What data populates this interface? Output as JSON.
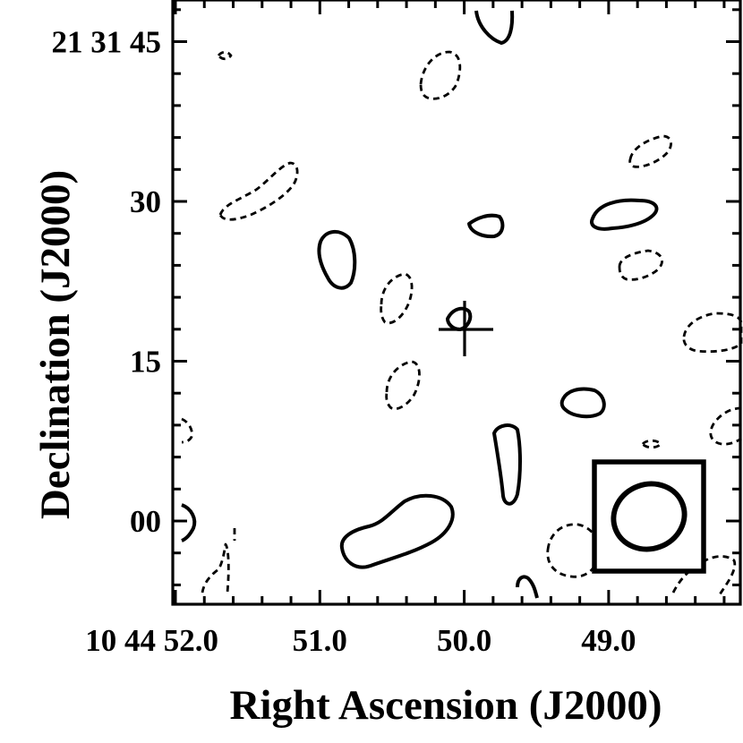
{
  "chart_data": {
    "type": "contour",
    "xlabel": "Right Ascension (J2000)",
    "ylabel": "Declination (J2000)",
    "x_ticks": [
      {
        "value": 52.0,
        "label": "10 44 52.0"
      },
      {
        "value": 51.0,
        "label": "51.0"
      },
      {
        "value": 50.0,
        "label": "50.0"
      },
      {
        "value": 49.0,
        "label": "49.0"
      }
    ],
    "y_ticks": [
      {
        "value": 45,
        "label": "21 31 45"
      },
      {
        "value": 30,
        "label": "30"
      },
      {
        "value": 15,
        "label": "15"
      },
      {
        "value": 0,
        "label": "00"
      }
    ],
    "xlim": [
      52.0,
      48.2
    ],
    "ylim": [
      -7.5,
      48
    ],
    "x_unit": "seconds of RA after 10h44m",
    "y_unit": "arcsec after +21d31m",
    "grid": false,
    "contours": {
      "positive_style": "solid",
      "negative_style": "dashed",
      "positive": [
        {
          "id": "pos-top-edge",
          "ra": 49.8,
          "dec": 47.5
        },
        {
          "id": "pos-upper-right",
          "ra": 49.0,
          "dec": 29.5
        },
        {
          "id": "pos-small-center",
          "ra": 49.9,
          "dec": 27.5
        },
        {
          "id": "pos-left-center",
          "ra": 50.9,
          "dec": 24.5
        },
        {
          "id": "pos-near-marker",
          "ra": 50.1,
          "dec": 19.0
        },
        {
          "id": "pos-right-middle",
          "ra": 49.2,
          "dec": 11.0
        },
        {
          "id": "pos-vertical-lower",
          "ra": 49.7,
          "dec": 5.5
        },
        {
          "id": "pos-large-lower-left",
          "ra": 50.5,
          "dec": -1.0
        },
        {
          "id": "pos-left-edge-lower",
          "ra": 51.9,
          "dec": 0.0
        },
        {
          "id": "pos-bottom-small",
          "ra": 49.6,
          "dec": -6.0
        }
      ],
      "negative": [
        {
          "id": "neg-dot-top-left",
          "ra": 51.6,
          "dec": 44.0
        },
        {
          "id": "neg-upper-middle",
          "ra": 50.3,
          "dec": 41.5
        },
        {
          "id": "neg-upper-right",
          "ra": 48.7,
          "dec": 35.0
        },
        {
          "id": "neg-left-upper",
          "ra": 51.2,
          "dec": 31.0
        },
        {
          "id": "neg-right",
          "ra": 48.7,
          "dec": 24.5
        },
        {
          "id": "neg-left-middle",
          "ra": 50.5,
          "dec": 20.5
        },
        {
          "id": "neg-far-right",
          "ra": 48.3,
          "dec": 18.0
        },
        {
          "id": "neg-left-lower",
          "ra": 50.5,
          "dec": 13.0
        },
        {
          "id": "neg-left-edge",
          "ra": 51.9,
          "dec": 8.5
        },
        {
          "id": "neg-far-right-lower",
          "ra": 48.2,
          "dec": 9.0
        },
        {
          "id": "neg-tiny-right",
          "ra": 48.75,
          "dec": 7.5
        },
        {
          "id": "neg-bottom-left",
          "ra": 51.6,
          "dec": -5.0
        },
        {
          "id": "neg-bottom-right",
          "ra": 49.1,
          "dec": -3.0
        },
        {
          "id": "neg-bottom-right-edge",
          "ra": 48.3,
          "dec": -5.0
        }
      ]
    },
    "marker": {
      "type": "cross",
      "ra": 50.05,
      "dec": 18.3
    },
    "beam": {
      "position": "bottom-right",
      "shape": "ellipse"
    }
  }
}
